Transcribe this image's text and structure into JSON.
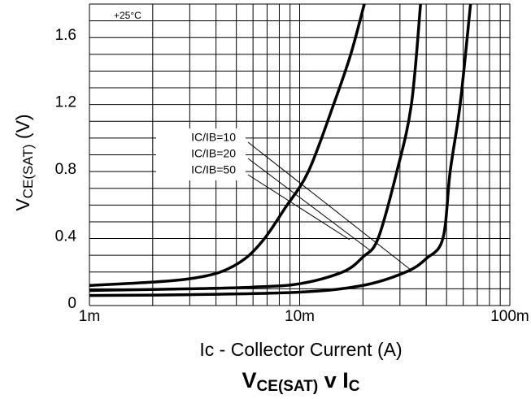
{
  "chart_data": {
    "type": "line",
    "title": [
      "V",
      "CE(SAT)",
      " v I",
      "C"
    ],
    "y_label": [
      "V",
      "CE(SAT)",
      " (V)"
    ],
    "x_label": "Ic - Collector Current (A)",
    "annotation": "+25°C",
    "x_log": true,
    "xlim": [
      0.001,
      0.1
    ],
    "xticks": [
      {
        "value": 0.001,
        "label": "1m"
      },
      {
        "value": 0.01,
        "label": "10m"
      },
      {
        "value": 0.1,
        "label": "100m"
      }
    ],
    "xgrid": [
      0.001,
      0.002,
      0.003,
      0.004,
      0.005,
      0.006,
      0.007,
      0.008,
      0.009,
      0.01,
      0.02,
      0.03,
      0.04,
      0.05,
      0.06,
      0.07,
      0.08,
      0.09,
      0.1
    ],
    "ylim": [
      0,
      1.8
    ],
    "yticks": [
      0,
      0.4,
      0.8,
      1.2,
      1.6
    ],
    "ygrid": [
      0,
      0.1,
      0.2,
      0.3,
      0.4,
      0.5,
      0.6,
      0.7,
      0.8,
      0.9,
      1.0,
      1.1,
      1.2,
      1.3,
      1.4,
      1.5,
      1.6,
      1.7,
      1.8
    ],
    "series": [
      {
        "name": "IC/IB=10",
        "color": "#000000",
        "x": [
          0.001,
          0.002,
          0.003,
          0.0042,
          0.0055,
          0.0068,
          0.0085,
          0.011,
          0.0145,
          0.0175,
          0.0203
        ],
        "values": [
          0.12,
          0.14,
          0.16,
          0.2,
          0.28,
          0.4,
          0.58,
          0.8,
          1.2,
          1.5,
          1.8
        ]
      },
      {
        "name": "IC/IB=20",
        "color": "#000000",
        "x": [
          0.001,
          0.003,
          0.006,
          0.01,
          0.016,
          0.02,
          0.0236,
          0.029,
          0.034,
          0.0376
        ],
        "values": [
          0.09,
          0.1,
          0.11,
          0.13,
          0.2,
          0.29,
          0.4,
          0.8,
          1.2,
          1.8
        ]
      },
      {
        "name": "IC/IB=50",
        "color": "#000000",
        "x": [
          0.001,
          0.003,
          0.01,
          0.02,
          0.032,
          0.04,
          0.048,
          0.052,
          0.058,
          0.065
        ],
        "values": [
          0.06,
          0.065,
          0.08,
          0.12,
          0.2,
          0.28,
          0.4,
          0.8,
          1.2,
          1.8
        ]
      }
    ]
  }
}
